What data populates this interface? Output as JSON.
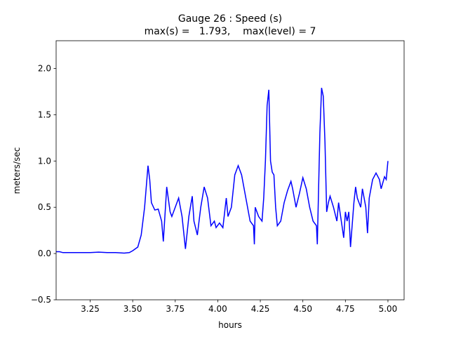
{
  "chart_data": {
    "type": "line",
    "title": "Gauge 26 : Speed (s)",
    "subtitle": "max(s) =   1.793,    max(level) = 7",
    "x_label": "hours",
    "y_label": "meters/sec",
    "xlim": [
      3.05,
      5.095
    ],
    "ylim": [
      -0.5,
      2.3
    ],
    "xticks": [
      3.25,
      {
        "value": 3.5,
        "label": "3.50"
      },
      3.75,
      {
        "value": 4.0,
        "label": "4.00"
      },
      4.25,
      {
        "value": 4.5,
        "label": "4.50"
      },
      4.75,
      {
        "value": 5.0,
        "label": "5.00"
      }
    ],
    "yticks": [
      {
        "value": -0.5,
        "label": "−0.5"
      },
      {
        "value": 0.0,
        "label": "0.0"
      },
      0.5,
      {
        "value": 1.0,
        "label": "1.0"
      },
      1.5,
      {
        "value": 2.0,
        "label": "2.0"
      }
    ],
    "grid": false,
    "series": [
      {
        "name": "speed",
        "color": "#0000ff",
        "x": [
          3.05,
          3.07,
          3.09,
          3.15,
          3.2,
          3.25,
          3.3,
          3.35,
          3.4,
          3.45,
          3.48,
          3.5,
          3.53,
          3.55,
          3.57,
          3.59,
          3.6,
          3.61,
          3.63,
          3.65,
          3.67,
          3.68,
          3.7,
          3.72,
          3.73,
          3.75,
          3.77,
          3.79,
          3.81,
          3.83,
          3.85,
          3.86,
          3.88,
          3.9,
          3.92,
          3.94,
          3.96,
          3.98,
          3.99,
          4.01,
          4.03,
          4.05,
          4.06,
          4.08,
          4.1,
          4.12,
          4.14,
          4.17,
          4.19,
          4.21,
          4.215,
          4.22,
          4.24,
          4.26,
          4.27,
          4.28,
          4.29,
          4.3,
          4.31,
          4.32,
          4.33,
          4.34,
          4.35,
          4.37,
          4.39,
          4.41,
          4.43,
          4.44,
          4.46,
          4.48,
          4.5,
          4.52,
          4.54,
          4.56,
          4.58,
          4.585,
          4.6,
          4.61,
          4.62,
          4.63,
          4.64,
          4.65,
          4.66,
          4.68,
          4.7,
          4.71,
          4.73,
          4.74,
          4.75,
          4.76,
          4.77,
          4.78,
          4.8,
          4.81,
          4.82,
          4.84,
          4.85,
          4.86,
          4.87,
          4.88,
          4.89,
          4.91,
          4.93,
          4.95,
          4.96,
          4.98,
          4.99,
          5.0
        ],
        "values": [
          0.02,
          0.02,
          0.01,
          0.01,
          0.01,
          0.01,
          0.015,
          0.01,
          0.01,
          0.005,
          0.01,
          0.03,
          0.07,
          0.2,
          0.5,
          0.95,
          0.8,
          0.55,
          0.47,
          0.48,
          0.35,
          0.13,
          0.72,
          0.45,
          0.4,
          0.5,
          0.6,
          0.4,
          0.05,
          0.4,
          0.62,
          0.35,
          0.2,
          0.5,
          0.72,
          0.6,
          0.3,
          0.35,
          0.28,
          0.33,
          0.28,
          0.6,
          0.4,
          0.5,
          0.85,
          0.95,
          0.85,
          0.55,
          0.35,
          0.3,
          0.1,
          0.5,
          0.4,
          0.35,
          0.6,
          1.0,
          1.6,
          1.77,
          1.0,
          0.88,
          0.85,
          0.5,
          0.3,
          0.35,
          0.55,
          0.68,
          0.78,
          0.7,
          0.5,
          0.65,
          0.82,
          0.7,
          0.5,
          0.35,
          0.3,
          0.1,
          1.3,
          1.79,
          1.7,
          1.2,
          0.45,
          0.55,
          0.62,
          0.5,
          0.35,
          0.55,
          0.3,
          0.17,
          0.45,
          0.35,
          0.45,
          0.07,
          0.55,
          0.72,
          0.6,
          0.5,
          0.7,
          0.6,
          0.5,
          0.22,
          0.6,
          0.8,
          0.87,
          0.8,
          0.7,
          0.83,
          0.8,
          1.0
        ]
      }
    ]
  }
}
